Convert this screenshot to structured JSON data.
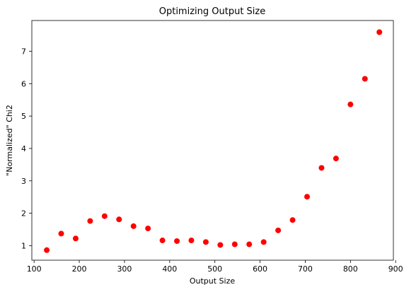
{
  "chart_data": {
    "type": "scatter",
    "title": "Optimizing Output Size",
    "xlabel": "Output Size",
    "ylabel": "\"Normalized\" Chi2",
    "xlim": [
      95,
      895
    ],
    "ylim": [
      0.55,
      7.95
    ],
    "xticks": [
      100,
      200,
      300,
      400,
      500,
      600,
      700,
      800,
      900
    ],
    "yticks": [
      1,
      2,
      3,
      4,
      5,
      6,
      7
    ],
    "grid": false,
    "marker_color": "#ff0000",
    "x": [
      128,
      160,
      192,
      224,
      256,
      288,
      320,
      352,
      384,
      416,
      448,
      480,
      512,
      544,
      576,
      608,
      640,
      672,
      704,
      736,
      768,
      800,
      832,
      864
    ],
    "y": [
      0.86,
      1.37,
      1.22,
      1.76,
      1.91,
      1.81,
      1.6,
      1.53,
      1.16,
      1.14,
      1.16,
      1.11,
      1.02,
      1.04,
      1.04,
      1.11,
      1.47,
      1.79,
      2.51,
      3.4,
      3.69,
      5.36,
      6.15,
      7.59
    ]
  }
}
